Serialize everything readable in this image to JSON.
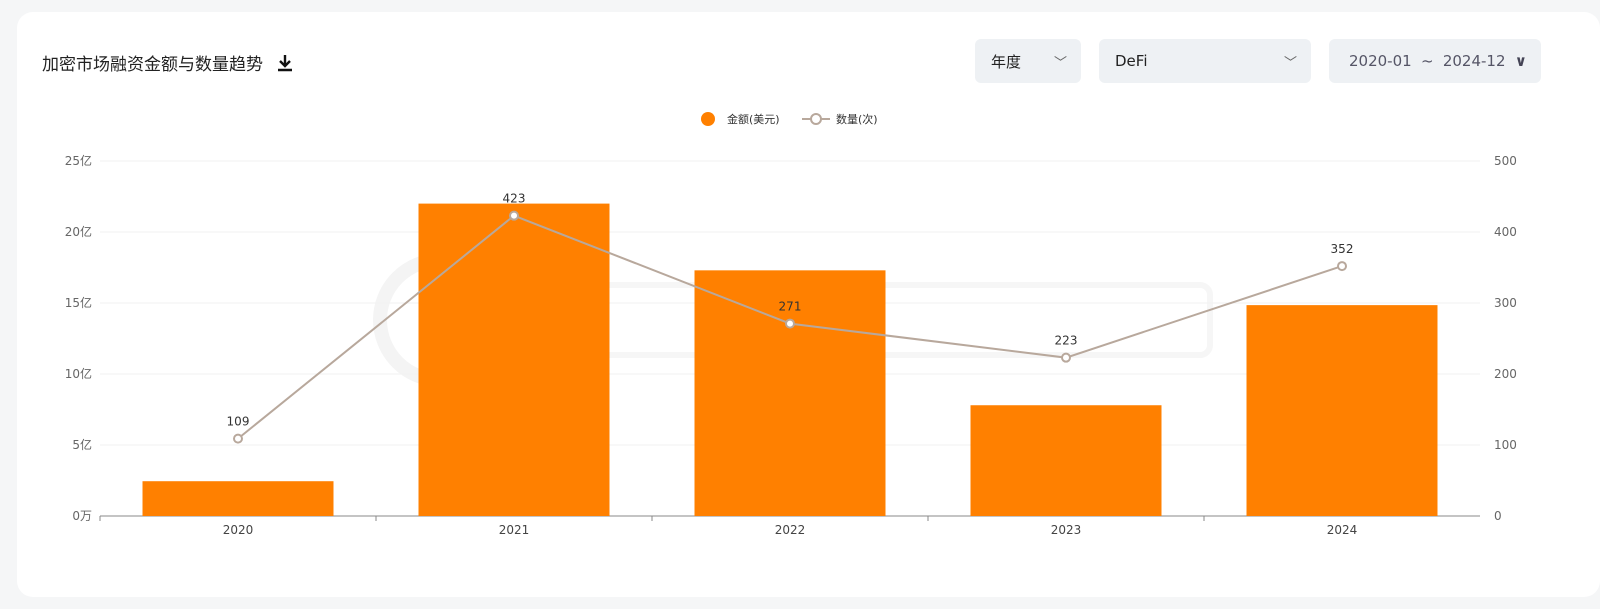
{
  "header": {
    "title": "加密市场融资金额与数量趋势",
    "download_icon": "download-icon"
  },
  "filters": {
    "period": "年度",
    "category": "DeFi",
    "date_start": "2020-01",
    "date_sep": "~",
    "date_end": "2024-12"
  },
  "watermark": "ROOTDATA",
  "chart_data": {
    "type": "bar+line",
    "categories": [
      "2020",
      "2021",
      "2022",
      "2023",
      "2024"
    ],
    "series": [
      {
        "name": "金额(美元)",
        "type": "bar",
        "axis": "left",
        "color": "#ff8000",
        "values": [
          2.45,
          22.0,
          17.3,
          7.8,
          14.85
        ]
      },
      {
        "name": "数量(次)",
        "type": "line",
        "axis": "right",
        "color": "#b8a89c",
        "values": [
          109,
          423,
          271,
          223,
          352
        ],
        "labels": [
          "109",
          "423",
          "271",
          "223",
          "352"
        ]
      }
    ],
    "left_axis": {
      "ylim": [
        0,
        25
      ],
      "ticks": [
        "0万",
        "5亿",
        "10亿",
        "15亿",
        "20亿",
        "25亿"
      ]
    },
    "right_axis": {
      "ylim": [
        0,
        500
      ],
      "ticks": [
        "0",
        "100",
        "200",
        "300",
        "400",
        "500"
      ]
    },
    "legend": "top-center",
    "grid": true
  }
}
